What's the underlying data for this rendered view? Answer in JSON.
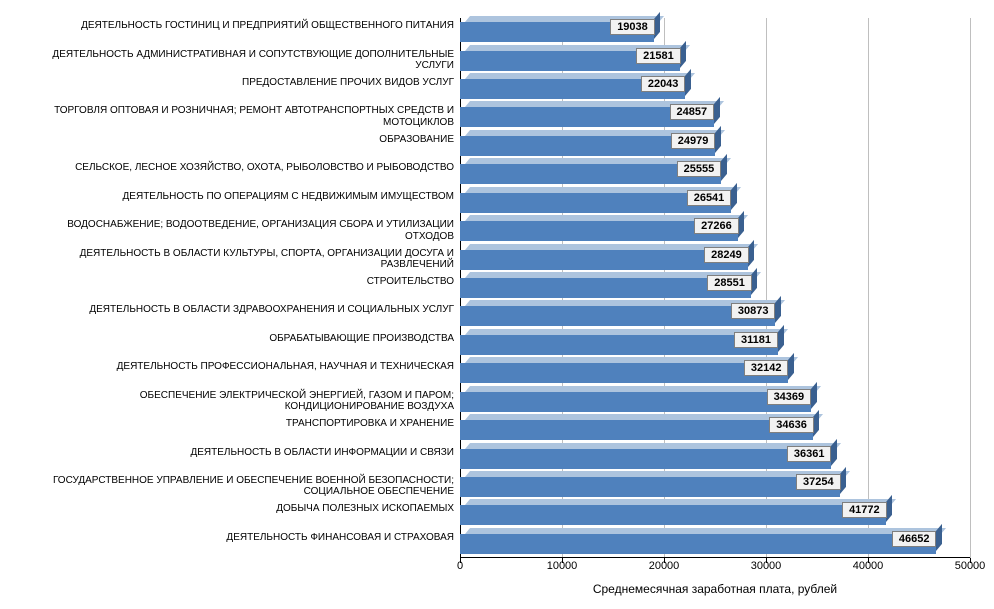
{
  "chart": {
    "type": "bar-horizontal-3d",
    "x_title": "Среднемесячная заработная плата, рублей",
    "xlim": [
      0,
      50000
    ],
    "xticks": [
      0,
      10000,
      20000,
      30000,
      40000,
      50000
    ],
    "background_color": "#ffffff",
    "grid_color": "#bfbfbf",
    "axis_color": "#000000",
    "label_fontsize": 10,
    "tick_fontsize": 11,
    "value_fontsize": 11,
    "title_fontsize": 12,
    "bar_front_color": "#4f81bd",
    "bar_top_color": "#adc4de",
    "bar_side_color": "#3a6090",
    "value_box_bg": "#f2f2f2",
    "value_box_border": "#7f7f7f",
    "rows": [
      {
        "label": "ДЕЯТЕЛЬНОСТЬ ГОСТИНИЦ И ПРЕДПРИЯТИЙ ОБЩЕСТВЕННОГО ПИТАНИЯ",
        "value": 19038
      },
      {
        "label": "ДЕЯТЕЛЬНОСТЬ АДМИНИСТРАТИВНАЯ И СОПУТСТВУЮЩИЕ ДОПОЛНИТЕЛЬНЫЕ УСЛУГИ",
        "value": 21581
      },
      {
        "label": "ПРЕДОСТАВЛЕНИЕ ПРОЧИХ ВИДОВ УСЛУГ",
        "value": 22043
      },
      {
        "label": "ТОРГОВЛЯ ОПТОВАЯ И РОЗНИЧНАЯ; РЕМОНТ АВТОТРАНСПОРТНЫХ СРЕДСТВ И МОТОЦИКЛОВ",
        "value": 24857
      },
      {
        "label": "ОБРАЗОВАНИЕ",
        "value": 24979
      },
      {
        "label": "СЕЛЬСКОЕ, ЛЕСНОЕ ХОЗЯЙСТВО, ОХОТА, РЫБОЛОВСТВО И РЫБОВОДСТВО",
        "value": 25555
      },
      {
        "label": "ДЕЯТЕЛЬНОСТЬ ПО ОПЕРАЦИЯМ С НЕДВИЖИМЫМ ИМУЩЕСТВОМ",
        "value": 26541
      },
      {
        "label": "ВОДОСНАБЖЕНИЕ; ВОДООТВЕДЕНИЕ, ОРГАНИЗАЦИЯ СБОРА И УТИЛИЗАЦИИ ОТХОДОВ",
        "value": 27266
      },
      {
        "label": "ДЕЯТЕЛЬНОСТЬ В ОБЛАСТИ КУЛЬТУРЫ, СПОРТА, ОРГАНИЗАЦИИ ДОСУГА И РАЗВЛЕЧЕНИЙ",
        "value": 28249
      },
      {
        "label": "СТРОИТЕЛЬСТВО",
        "value": 28551
      },
      {
        "label": "ДЕЯТЕЛЬНОСТЬ В ОБЛАСТИ ЗДРАВООХРАНЕНИЯ И СОЦИАЛЬНЫХ УСЛУГ",
        "value": 30873
      },
      {
        "label": "ОБРАБАТЫВАЮЩИЕ ПРОИЗВОДСТВА",
        "value": 31181
      },
      {
        "label": "ДЕЯТЕЛЬНОСТЬ ПРОФЕССИОНАЛЬНАЯ, НАУЧНАЯ И ТЕХНИЧЕСКАЯ",
        "value": 32142
      },
      {
        "label": "ОБЕСПЕЧЕНИЕ ЭЛЕКТРИЧЕСКОЙ ЭНЕРГИЕЙ, ГАЗОМ И ПАРОМ; КОНДИЦИОНИРОВАНИЕ ВОЗДУХА",
        "value": 34369
      },
      {
        "label": "ТРАНСПОРТИРОВКА И ХРАНЕНИЕ",
        "value": 34636
      },
      {
        "label": "ДЕЯТЕЛЬНОСТЬ В ОБЛАСТИ ИНФОРМАЦИИ И СВЯЗИ",
        "value": 36361
      },
      {
        "label": "ГОСУДАРСТВЕННОЕ УПРАВЛЕНИЕ И ОБЕСПЕЧЕНИЕ ВОЕННОЙ БЕЗОПАСНОСТИ; СОЦИАЛЬНОЕ ОБЕСПЕЧЕНИЕ",
        "value": 37254
      },
      {
        "label": "ДОБЫЧА ПОЛЕЗНЫХ ИСКОПАЕМЫХ",
        "value": 41772
      },
      {
        "label": "ДЕЯТЕЛЬНОСТЬ ФИНАНСОВАЯ И СТРАХОВАЯ",
        "value": 46652
      }
    ]
  }
}
